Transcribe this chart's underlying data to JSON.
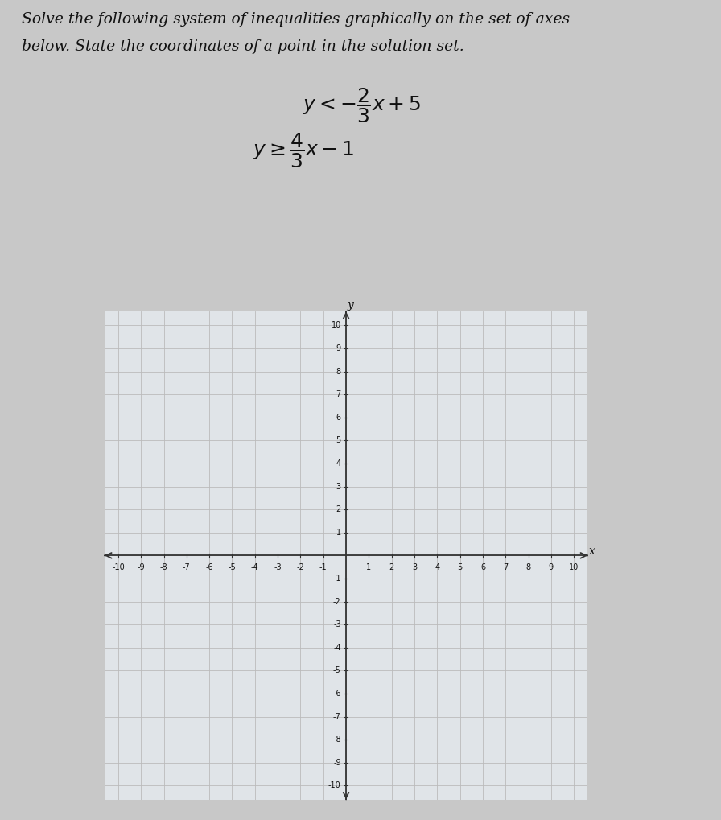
{
  "title_line1": "Solve the following system of inequalities graphically on the set of axes",
  "title_line2": "below. State the coordinates of a point in the solution set.",
  "ineq1_latex": "$y < -\\dfrac{2}{3}x + 5$",
  "ineq2_latex": "$y \\geq \\dfrac{4}{3}x - 1$",
  "xmin": -10,
  "xmax": 10,
  "ymin": -10,
  "ymax": 10,
  "grid_color": "#bbbbbb",
  "axis_color": "#333333",
  "background_color": "#c8c8c8",
  "plot_bg_color": "#e0e4e8",
  "text_color": "#111111",
  "title_fontsize": 13.5,
  "eq_fontsize": 18,
  "tick_fontsize": 7,
  "axis_label_fontsize": 10
}
